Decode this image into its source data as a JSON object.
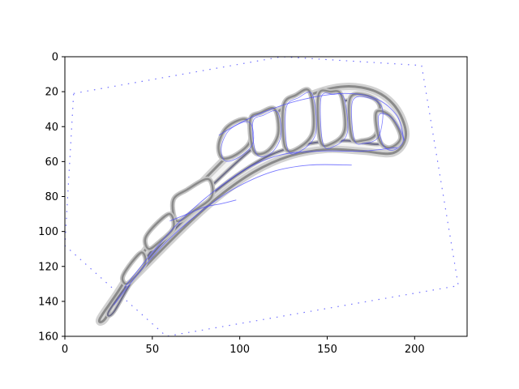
{
  "plot": {
    "xlim": [
      0,
      230
    ],
    "ylim": [
      160,
      0
    ],
    "y_axis_inverted": true,
    "xticks": [
      0,
      50,
      100,
      150,
      200
    ],
    "yticks": [
      0,
      20,
      40,
      60,
      80,
      100,
      120,
      140,
      160
    ],
    "xtick_labels": [
      "0",
      "50",
      "100",
      "150",
      "200"
    ],
    "ytick_labels": [
      "0",
      "20",
      "40",
      "60",
      "80",
      "100",
      "120",
      "140",
      "160"
    ],
    "colors": {
      "contour": "#8a8a8a",
      "inner_contour": "#6d6d8a",
      "overlay": "#4b4bff",
      "axes": "#000000"
    }
  },
  "image": {
    "subject": "curved turbine-blade cross-section with internal cooling cavities",
    "outline": [
      [
        20,
        150
      ],
      [
        30,
        135
      ],
      [
        45,
        112
      ],
      [
        62,
        90
      ],
      [
        80,
        70
      ],
      [
        98,
        52
      ],
      [
        118,
        34
      ],
      [
        140,
        22
      ],
      [
        160,
        17
      ],
      [
        178,
        20
      ],
      [
        190,
        30
      ],
      [
        195,
        45
      ],
      [
        188,
        55
      ],
      [
        170,
        54
      ],
      [
        150,
        53
      ],
      [
        128,
        57
      ],
      [
        108,
        66
      ],
      [
        88,
        80
      ],
      [
        68,
        98
      ],
      [
        48,
        118
      ],
      [
        32,
        135
      ],
      [
        23,
        150
      ]
    ],
    "inner_outline": [
      [
        25,
        146
      ],
      [
        36,
        130
      ],
      [
        52,
        108
      ],
      [
        70,
        88
      ],
      [
        88,
        70
      ],
      [
        108,
        52
      ],
      [
        128,
        38
      ],
      [
        148,
        28
      ],
      [
        165,
        25
      ],
      [
        180,
        30
      ],
      [
        188,
        44
      ],
      [
        180,
        50
      ],
      [
        160,
        48
      ],
      [
        138,
        50
      ],
      [
        118,
        56
      ],
      [
        98,
        68
      ],
      [
        78,
        84
      ],
      [
        58,
        104
      ],
      [
        40,
        126
      ],
      [
        28,
        146
      ]
    ],
    "cavities": [
      [
        [
          88,
          50
        ],
        [
          93,
          40
        ],
        [
          104,
          36
        ],
        [
          106,
          48
        ],
        [
          98,
          56
        ],
        [
          90,
          58
        ]
      ],
      [
        [
          106,
          36
        ],
        [
          112,
          32
        ],
        [
          120,
          30
        ],
        [
          122,
          44
        ],
        [
          116,
          54
        ],
        [
          108,
          54
        ]
      ],
      [
        [
          125,
          28
        ],
        [
          132,
          22
        ],
        [
          140,
          20
        ],
        [
          142,
          42
        ],
        [
          134,
          52
        ],
        [
          126,
          52
        ]
      ],
      [
        [
          145,
          22
        ],
        [
          152,
          20
        ],
        [
          158,
          22
        ],
        [
          160,
          42
        ],
        [
          152,
          50
        ],
        [
          146,
          48
        ]
      ],
      [
        [
          163,
          24
        ],
        [
          172,
          22
        ],
        [
          180,
          28
        ],
        [
          178,
          44
        ],
        [
          170,
          48
        ],
        [
          164,
          46
        ]
      ],
      [
        [
          178,
          32
        ],
        [
          186,
          34
        ],
        [
          192,
          46
        ],
        [
          186,
          52
        ],
        [
          180,
          48
        ]
      ],
      [
        [
          62,
          82
        ],
        [
          70,
          76
        ],
        [
          82,
          70
        ],
        [
          84,
          80
        ],
        [
          74,
          88
        ],
        [
          64,
          94
        ]
      ],
      [
        [
          46,
          104
        ],
        [
          52,
          96
        ],
        [
          60,
          90
        ],
        [
          62,
          98
        ],
        [
          54,
          106
        ],
        [
          48,
          110
        ]
      ],
      [
        [
          33,
          126
        ],
        [
          38,
          118
        ],
        [
          44,
          112
        ],
        [
          46,
          118
        ],
        [
          40,
          126
        ],
        [
          35,
          130
        ]
      ]
    ],
    "overlay_lines": [
      [
        [
          88,
          45
        ],
        [
          100,
          38
        ],
        [
          118,
          30
        ],
        [
          138,
          24
        ],
        [
          160,
          21
        ],
        [
          178,
          24
        ],
        [
          190,
          34
        ],
        [
          194,
          48
        ]
      ],
      [
        [
          34,
          132
        ],
        [
          50,
          112
        ],
        [
          66,
          94
        ],
        [
          84,
          78
        ],
        [
          104,
          64
        ],
        [
          124,
          56
        ],
        [
          146,
          54
        ],
        [
          170,
          54
        ],
        [
          190,
          52
        ]
      ],
      [
        [
          28,
          142
        ],
        [
          42,
          124
        ],
        [
          58,
          106
        ],
        [
          76,
          90
        ],
        [
          96,
          76
        ],
        [
          118,
          66
        ],
        [
          140,
          62
        ],
        [
          164,
          62
        ]
      ],
      [
        [
          60,
          94
        ],
        [
          70,
          90
        ],
        [
          80,
          86
        ],
        [
          90,
          84
        ],
        [
          98,
          82
        ]
      ]
    ],
    "dotted_rotated_box": [
      [
        5,
        21
      ],
      [
        124,
        0
      ],
      [
        204,
        5
      ],
      [
        225,
        131
      ],
      [
        58,
        160
      ],
      [
        0,
        108
      ]
    ]
  }
}
